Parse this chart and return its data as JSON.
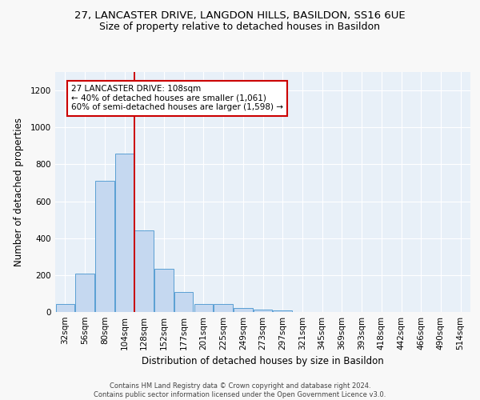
{
  "title_line1": "27, LANCASTER DRIVE, LANGDON HILLS, BASILDON, SS16 6UE",
  "title_line2": "Size of property relative to detached houses in Basildon",
  "xlabel": "Distribution of detached houses by size in Basildon",
  "ylabel": "Number of detached properties",
  "footnote": "Contains HM Land Registry data © Crown copyright and database right 2024.\nContains public sector information licensed under the Open Government Licence v3.0.",
  "bin_labels": [
    "32sqm",
    "56sqm",
    "80sqm",
    "104sqm",
    "128sqm",
    "152sqm",
    "177sqm",
    "201sqm",
    "225sqm",
    "249sqm",
    "273sqm",
    "297sqm",
    "321sqm",
    "345sqm",
    "369sqm",
    "393sqm",
    "418sqm",
    "442sqm",
    "466sqm",
    "490sqm",
    "514sqm"
  ],
  "bar_values": [
    45,
    210,
    710,
    860,
    440,
    235,
    108,
    42,
    42,
    22,
    14,
    8,
    0,
    0,
    0,
    0,
    0,
    0,
    0,
    0,
    0
  ],
  "bar_color": "#c5d8f0",
  "bar_edge_color": "#5a9fd4",
  "background_color": "#e8f0f8",
  "grid_color": "#ffffff",
  "red_line_bin_index": 3,
  "annotation_text": "27 LANCASTER DRIVE: 108sqm\n← 40% of detached houses are smaller (1,061)\n60% of semi-detached houses are larger (1,598) →",
  "annotation_box_color": "#ffffff",
  "annotation_border_color": "#cc0000",
  "ylim": [
    0,
    1300
  ],
  "yticks": [
    0,
    200,
    400,
    600,
    800,
    1000,
    1200
  ],
  "title_fontsize": 9.5,
  "subtitle_fontsize": 9,
  "axis_label_fontsize": 8.5,
  "tick_fontsize": 7.5,
  "annot_fontsize": 7.5,
  "footnote_fontsize": 6.0
}
